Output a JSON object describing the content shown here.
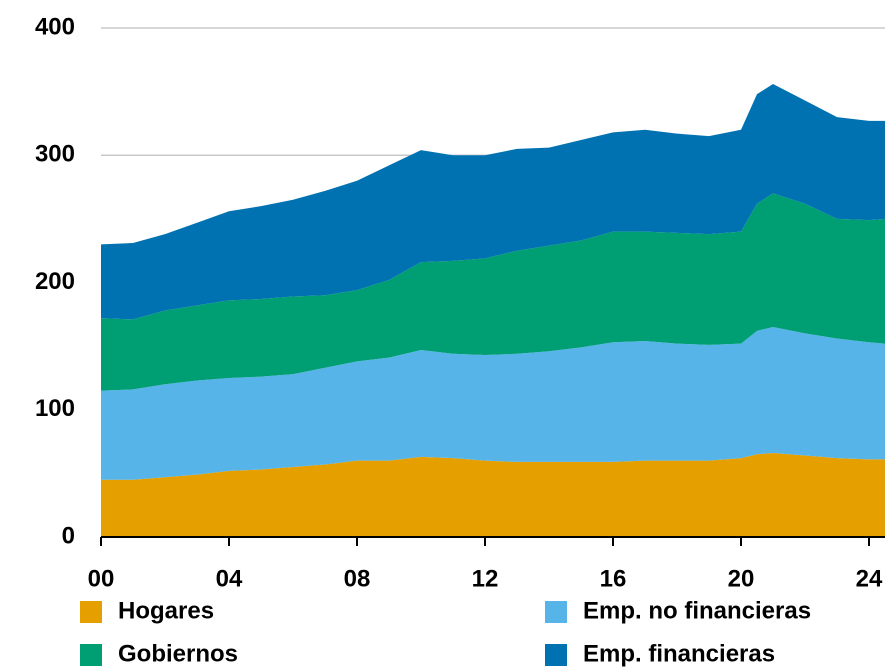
{
  "chart_data": {
    "type": "stacked_area",
    "x": [
      0,
      1,
      2,
      3,
      4,
      5,
      6,
      7,
      8,
      9,
      10,
      11,
      12,
      13,
      14,
      15,
      16,
      17,
      18,
      19,
      20,
      20.5,
      21,
      22,
      23,
      24,
      24.5
    ],
    "series": [
      {
        "name": "Hogares",
        "color": "#E5A000",
        "values": [
          45,
          45,
          47,
          49,
          52,
          53,
          55,
          57,
          60,
          60,
          63,
          62,
          60,
          59,
          59,
          59,
          59,
          60,
          60,
          60,
          62,
          65,
          66,
          64,
          62,
          61,
          61
        ]
      },
      {
        "name": "Emp. no financieras",
        "color": "#56B4E9",
        "values": [
          70,
          71,
          73,
          74,
          73,
          73,
          73,
          76,
          78,
          81,
          84,
          82,
          83,
          85,
          87,
          90,
          94,
          94,
          92,
          91,
          90,
          97,
          99,
          96,
          94,
          92,
          91
        ]
      },
      {
        "name": "Gobiernos",
        "color": "#009E73",
        "values": [
          57,
          55,
          58,
          59,
          61,
          61,
          61,
          57,
          56,
          61,
          69,
          73,
          76,
          81,
          83,
          84,
          87,
          86,
          87,
          87,
          88,
          100,
          105,
          102,
          94,
          96,
          98
        ]
      },
      {
        "name": "Emp. financieras",
        "color": "#0072B2",
        "values": [
          58,
          60,
          60,
          65,
          70,
          73,
          76,
          82,
          86,
          90,
          88,
          83,
          81,
          80,
          77,
          79,
          78,
          80,
          78,
          77,
          80,
          86,
          86,
          81,
          80,
          78,
          77
        ]
      }
    ],
    "xlim": [
      0,
      24.5
    ],
    "xticks": [
      {
        "value": 0,
        "label": "00"
      },
      {
        "value": 4,
        "label": "04"
      },
      {
        "value": 8,
        "label": "08"
      },
      12,
      16,
      20,
      24
    ],
    "ylim": [
      0,
      400
    ],
    "yticks": [
      0,
      100,
      200,
      300,
      400
    ],
    "grid": true,
    "legend": "bottom"
  }
}
